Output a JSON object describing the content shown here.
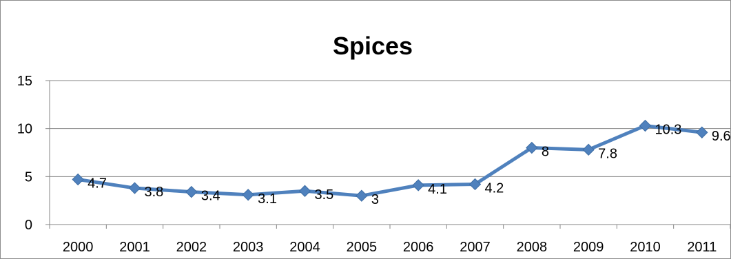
{
  "chart_data": {
    "type": "line",
    "title": "Spices",
    "xlabel": "",
    "ylabel": "",
    "categories": [
      "2000",
      "2001",
      "2002",
      "2003",
      "2004",
      "2005",
      "2006",
      "2007",
      "2008",
      "2009",
      "2010",
      "2011"
    ],
    "series": [
      {
        "values": [
          4.7,
          3.8,
          3.4,
          3.1,
          3.5,
          3,
          4.1,
          4.2,
          8,
          7.8,
          10.3,
          9.6
        ],
        "data_labels": [
          "4.7",
          "3.8",
          "3.4",
          "3.1",
          "3.5",
          "3",
          "4.1",
          "4.2",
          "8",
          "7.8",
          "10.3",
          "9.6"
        ],
        "color": "#4f81bd",
        "marker": "diamond"
      }
    ],
    "ylim": [
      0,
      15
    ],
    "yticks": [
      "0",
      "5",
      "10",
      "15"
    ],
    "grid": true,
    "legend": "none"
  }
}
